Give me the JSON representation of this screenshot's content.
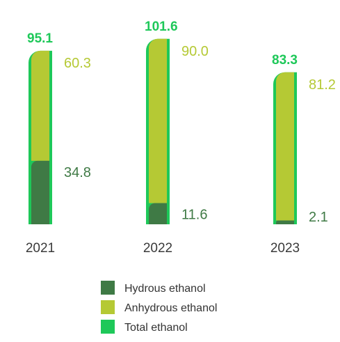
{
  "colors": {
    "hydrous": "#3f7a45",
    "anhydrous": "#b5c934",
    "total": "#1ec859",
    "year_text": "#3a3a3a",
    "legend_text": "#333333"
  },
  "chart_data": {
    "type": "bar",
    "stacked": true,
    "categories": [
      "2021",
      "2022",
      "2023"
    ],
    "series": [
      {
        "name": "Hydrous ethanol",
        "values": [
          34.8,
          11.6,
          2.1
        ]
      },
      {
        "name": "Anhydrous ethanol",
        "values": [
          60.3,
          90.0,
          81.2
        ]
      }
    ],
    "totals": {
      "name": "Total ethanol",
      "values": [
        95.1,
        101.6,
        83.3
      ]
    },
    "value_labels": {
      "hydrous": [
        "34.8",
        "11.6",
        "2.1"
      ],
      "anhydrous": [
        "60.3",
        "90.0",
        "81.2"
      ],
      "total": [
        "95.1",
        "101.6",
        "83.3"
      ]
    },
    "legend": [
      "Hydrous ethanol",
      "Anhydrous ethanol",
      "Total ethanol"
    ],
    "legend_position": "bottom-center",
    "grid": false,
    "y_axis_shown": false
  }
}
